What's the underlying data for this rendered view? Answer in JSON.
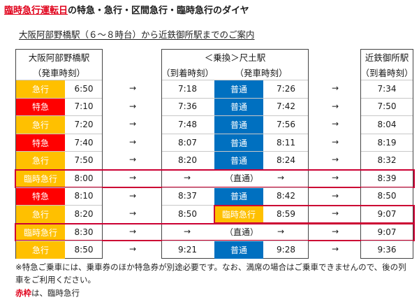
{
  "title": {
    "highlight": "臨時急行運転日",
    "rest": "の特急・急行・区間急行・臨時急行のダイヤ"
  },
  "subtitle": "大阪阿部野橋駅（６～８時台）から近鉄御所駅までのご案内",
  "headers": {
    "col1_station": "大阪阿部野橋駅",
    "col1_sub": "（発車時刻）",
    "col2_station": "＜乗換＞尺土駅",
    "col2_arr": "（到着時刻）",
    "col2_dep": "（発車時刻）",
    "col3_station": "近鉄御所駅",
    "col3_sub": "（到着時刻）"
  },
  "arrow": "→",
  "direct_label": "（直通）",
  "colors": {
    "kyuko": "#ffc000",
    "tokkyu": "#ff0000",
    "futsu": "#0070c0",
    "red_frame": "#cc0033"
  },
  "rows": [
    {
      "type": "急行",
      "dep": "6:50",
      "arr_shakudo": "7:18",
      "transfer": "普通",
      "dep_shakudo": "7:26",
      "arr_gose": "7:34",
      "direct": false
    },
    {
      "type": "特急",
      "dep": "7:10",
      "arr_shakudo": "7:36",
      "transfer": "普通",
      "dep_shakudo": "7:42",
      "arr_gose": "7:50",
      "direct": false
    },
    {
      "type": "急行",
      "dep": "7:20",
      "arr_shakudo": "7:48",
      "transfer": "普通",
      "dep_shakudo": "7:56",
      "arr_gose": "8:04",
      "direct": false
    },
    {
      "type": "特急",
      "dep": "7:40",
      "arr_shakudo": "8:07",
      "transfer": "普通",
      "dep_shakudo": "8:11",
      "arr_gose": "8:19",
      "direct": false
    },
    {
      "type": "急行",
      "dep": "7:50",
      "arr_shakudo": "8:20",
      "transfer": "普通",
      "dep_shakudo": "8:24",
      "arr_gose": "8:32",
      "direct": false
    },
    {
      "type": "臨時急行",
      "dep": "8:00",
      "arr_shakudo": "",
      "transfer": "",
      "dep_shakudo": "",
      "arr_gose": "8:39",
      "direct": true
    },
    {
      "type": "特急",
      "dep": "8:10",
      "arr_shakudo": "8:37",
      "transfer": "普通",
      "dep_shakudo": "8:42",
      "arr_gose": "8:50",
      "direct": false
    },
    {
      "type": "急行",
      "dep": "8:20",
      "arr_shakudo": "8:50",
      "transfer": "臨時急行",
      "dep_shakudo": "8:59",
      "arr_gose": "9:07",
      "direct": false
    },
    {
      "type": "臨時急行",
      "dep": "8:30",
      "arr_shakudo": "",
      "transfer": "",
      "dep_shakudo": "",
      "arr_gose": "9:07",
      "direct": true
    },
    {
      "type": "急行",
      "dep": "8:50",
      "arr_shakudo": "9:21",
      "transfer": "普通",
      "dep_shakudo": "9:28",
      "arr_gose": "9:36",
      "direct": false
    }
  ],
  "notes": {
    "line1": "※特急ご乗車には、乗車券のほか特急券が別途必要です。なお、満席の場合はご乗車できませんので、後の列",
    "line2": "車をご利用ください。",
    "legend_red": "赤枠",
    "legend_rest": "は、臨時急行"
  }
}
